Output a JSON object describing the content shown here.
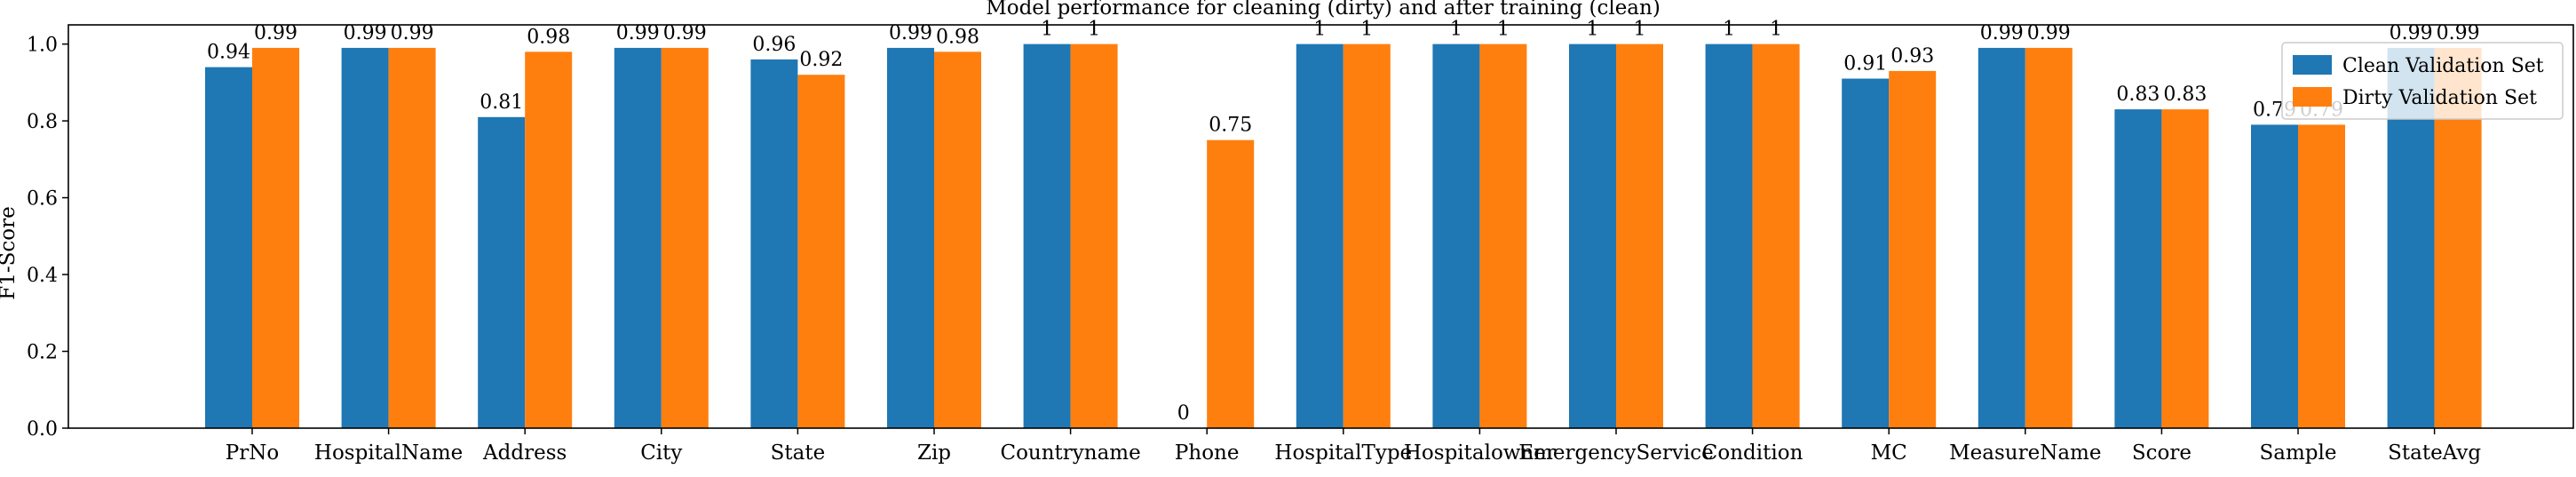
{
  "chart_data": {
    "type": "bar",
    "title": "Model performance for cleaning (dirty) and after training (clean)",
    "ylabel": "F1-Score",
    "xlabel": "",
    "ylim": [
      0,
      1.05
    ],
    "yticks": [
      "0.0",
      "0.2",
      "0.4",
      "0.6",
      "0.8",
      "1.0"
    ],
    "grid": false,
    "legend_position": "top-right",
    "categories": [
      "PrNo",
      "HospitalName",
      "Address",
      "City",
      "State",
      "Zip",
      "Countryname",
      "Phone",
      "HospitalType",
      "Hospitalowner",
      "EmergencyService",
      "Condition",
      "MC",
      "MeasureName",
      "Score",
      "Sample",
      "StateAvg"
    ],
    "series": [
      {
        "name": "Clean Validation Set",
        "color": "#1f77b4",
        "values": [
          0.94,
          0.99,
          0.81,
          0.99,
          0.96,
          0.99,
          1,
          0,
          1,
          1,
          1,
          1,
          0.91,
          0.99,
          0.83,
          0.79,
          0.99
        ],
        "labels": [
          "0.94",
          "0.99",
          "0.81",
          "0.99",
          "0.96",
          "0.99",
          "1",
          "0",
          "1",
          "1",
          "1",
          "1",
          "0.91",
          "0.99",
          "0.83",
          "0.79",
          "0.99"
        ]
      },
      {
        "name": "Dirty Validation Set",
        "color": "#ff7f0e",
        "values": [
          0.99,
          0.99,
          0.98,
          0.99,
          0.92,
          0.98,
          1,
          0.75,
          1,
          1,
          1,
          1,
          0.93,
          0.99,
          0.83,
          0.79,
          0.99
        ],
        "labels": [
          "0.99",
          "0.99",
          "0.98",
          "0.99",
          "0.92",
          "0.98",
          "1",
          "0.75",
          "1",
          "1",
          "1",
          "1",
          "0.93",
          "0.99",
          "0.83",
          "0.79",
          "0.99"
        ]
      }
    ]
  }
}
